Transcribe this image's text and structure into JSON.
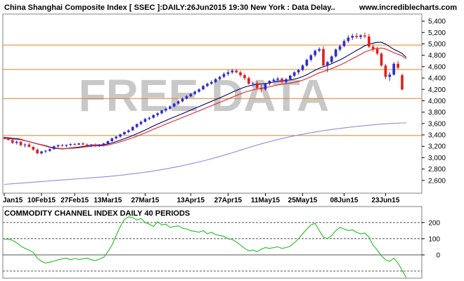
{
  "header": {
    "title": "China Shanghai Composite Index [ SSEC ]:DAILY:26Jun2015 19:30 New York : Data Delay..",
    "site": "www.incrediblecharts.com"
  },
  "watermark": "FREE DATA",
  "colors": {
    "up": "#2d2dcc",
    "down": "#e02020",
    "ma_short": "#000066",
    "ma_mid": "#dd2222",
    "ma_long": "#8c8ce0",
    "hline": "#e08020",
    "cci": "#22bb22"
  },
  "chart_data": [
    {
      "type": "candlestick",
      "title": "China Shanghai Composite Index [ SSEC ]:DAILY:26Jun2015 19:30 New York : Data Delay..",
      "xlabels": [
        "Jan15",
        "10Feb15",
        "27Feb15",
        "13Mar15",
        "27Mar15",
        "13Apr15",
        "27Apr15",
        "11May15",
        "25May15",
        "08Jun15",
        "23Jun15"
      ],
      "xlabel_index": [
        0,
        9,
        17,
        25,
        34,
        45,
        54,
        63,
        72,
        82,
        92
      ],
      "ylim": [
        2400,
        5500
      ],
      "yticks": [
        2600,
        2800,
        3000,
        3200,
        3400,
        3600,
        3800,
        4000,
        4200,
        4400,
        4600,
        4800,
        5000,
        5200,
        5400
      ],
      "ytick_labels": [
        "2,600",
        "2,800",
        "3,000",
        "3,200",
        "3,400",
        "3,600",
        "3,800",
        "4,000",
        "4,200",
        "4,400",
        "4,600",
        "4,800",
        "5,000",
        "5,200",
        "5,400"
      ],
      "hlines": [
        3390,
        4040,
        4550,
        4980
      ],
      "series_ohlc": [
        [
          3350,
          3370,
          3320,
          3340
        ],
        [
          3340,
          3350,
          3300,
          3310
        ],
        [
          3310,
          3320,
          3240,
          3260
        ],
        [
          3260,
          3300,
          3230,
          3280
        ],
        [
          3280,
          3290,
          3200,
          3220
        ],
        [
          3220,
          3250,
          3180,
          3230
        ],
        [
          3230,
          3260,
          3180,
          3190
        ],
        [
          3190,
          3200,
          3120,
          3140
        ],
        [
          3140,
          3160,
          3060,
          3075
        ],
        [
          3075,
          3120,
          3060,
          3110
        ],
        [
          3110,
          3140,
          3080,
          3120
        ],
        [
          3120,
          3160,
          3100,
          3150
        ],
        [
          3150,
          3210,
          3140,
          3200
        ],
        [
          3200,
          3230,
          3180,
          3220
        ],
        [
          3220,
          3240,
          3190,
          3210
        ],
        [
          3210,
          3230,
          3180,
          3225
        ],
        [
          3225,
          3250,
          3200,
          3240
        ],
        [
          3240,
          3260,
          3210,
          3230
        ],
        [
          3230,
          3260,
          3220,
          3250
        ],
        [
          3250,
          3270,
          3220,
          3230
        ],
        [
          3230,
          3250,
          3200,
          3220
        ],
        [
          3220,
          3240,
          3180,
          3230
        ],
        [
          3230,
          3250,
          3190,
          3210
        ],
        [
          3210,
          3240,
          3190,
          3230
        ],
        [
          3230,
          3260,
          3200,
          3250
        ],
        [
          3250,
          3300,
          3240,
          3290
        ],
        [
          3290,
          3350,
          3280,
          3340
        ],
        [
          3340,
          3380,
          3320,
          3370
        ],
        [
          3370,
          3420,
          3350,
          3410
        ],
        [
          3410,
          3460,
          3400,
          3450
        ],
        [
          3450,
          3500,
          3430,
          3480
        ],
        [
          3480,
          3550,
          3470,
          3540
        ],
        [
          3540,
          3600,
          3520,
          3590
        ],
        [
          3590,
          3650,
          3570,
          3630
        ],
        [
          3630,
          3700,
          3620,
          3680
        ],
        [
          3680,
          3720,
          3660,
          3700
        ],
        [
          3700,
          3760,
          3690,
          3750
        ],
        [
          3750,
          3800,
          3720,
          3780
        ],
        [
          3780,
          3840,
          3760,
          3830
        ],
        [
          3830,
          3880,
          3800,
          3860
        ],
        [
          3860,
          3920,
          3840,
          3900
        ],
        [
          3900,
          3960,
          3880,
          3950
        ],
        [
          3950,
          4010,
          3930,
          3990
        ],
        [
          3990,
          4060,
          3970,
          4040
        ],
        [
          4040,
          4100,
          4020,
          4080
        ],
        [
          4080,
          4140,
          4060,
          4120
        ],
        [
          4120,
          4180,
          4100,
          4160
        ],
        [
          4160,
          4220,
          4140,
          4200
        ],
        [
          4200,
          4280,
          4190,
          4260
        ],
        [
          4260,
          4320,
          4240,
          4300
        ],
        [
          4300,
          4360,
          4280,
          4330
        ],
        [
          4330,
          4400,
          4310,
          4380
        ],
        [
          4380,
          4440,
          4360,
          4420
        ],
        [
          4420,
          4500,
          4400,
          4470
        ],
        [
          4470,
          4540,
          4440,
          4500
        ],
        [
          4500,
          4560,
          4470,
          4530
        ],
        [
          4530,
          4560,
          4480,
          4500
        ],
        [
          4500,
          4530,
          4420,
          4450
        ],
        [
          4450,
          4480,
          4360,
          4400
        ],
        [
          4400,
          4430,
          4280,
          4300
        ],
        [
          4300,
          4340,
          4240,
          4310
        ],
        [
          4310,
          4350,
          4200,
          4230
        ],
        [
          4230,
          4280,
          4150,
          4200
        ],
        [
          4200,
          4320,
          4180,
          4300
        ],
        [
          4300,
          4360,
          4270,
          4350
        ],
        [
          4350,
          4400,
          4320,
          4370
        ],
        [
          4370,
          4420,
          4330,
          4390
        ],
        [
          4390,
          4410,
          4310,
          4330
        ],
        [
          4330,
          4400,
          4300,
          4380
        ],
        [
          4380,
          4460,
          4360,
          4440
        ],
        [
          4440,
          4520,
          4420,
          4500
        ],
        [
          4500,
          4560,
          4460,
          4540
        ],
        [
          4540,
          4640,
          4520,
          4620
        ],
        [
          4620,
          4740,
          4600,
          4720
        ],
        [
          4720,
          4820,
          4690,
          4800
        ],
        [
          4800,
          4900,
          4770,
          4880
        ],
        [
          4880,
          4940,
          4850,
          4910
        ],
        [
          4910,
          4960,
          4600,
          4620
        ],
        [
          4620,
          4700,
          4500,
          4680
        ],
        [
          4680,
          4800,
          4650,
          4780
        ],
        [
          4780,
          4920,
          4760,
          4900
        ],
        [
          4900,
          4990,
          4870,
          4960
        ],
        [
          4960,
          5080,
          4940,
          5050
        ],
        [
          5050,
          5150,
          5020,
          5110
        ],
        [
          5110,
          5180,
          5070,
          5140
        ],
        [
          5140,
          5190,
          5090,
          5120
        ],
        [
          5120,
          5170,
          5080,
          5150
        ],
        [
          5150,
          5200,
          5100,
          5130
        ],
        [
          5130,
          5180,
          4930,
          4950
        ],
        [
          4950,
          5000,
          4860,
          4910
        ],
        [
          4910,
          4950,
          4800,
          4830
        ],
        [
          4830,
          4850,
          4600,
          4620
        ],
        [
          4620,
          4650,
          4380,
          4420
        ],
        [
          4420,
          4500,
          4350,
          4460
        ],
        [
          4460,
          4680,
          4440,
          4650
        ],
        [
          4650,
          4700,
          4560,
          4580
        ],
        [
          4450,
          4480,
          4180,
          4200
        ]
      ],
      "moving_averages": [
        {
          "name": "",
          "values": [
            3355,
            3350,
            3340,
            3335,
            3322,
            3300,
            3282,
            3263,
            3240,
            3225,
            3205,
            3182,
            3166,
            3160,
            3155,
            3159,
            3171,
            3178,
            3186,
            3196,
            3208,
            3220,
            3223,
            3223,
            3226,
            3242,
            3259,
            3283,
            3306,
            3334,
            3360,
            3389,
            3420,
            3452,
            3486,
            3522,
            3558,
            3590,
            3621,
            3652,
            3684,
            3714,
            3744,
            3775,
            3806,
            3836,
            3868,
            3898,
            3929,
            3959,
            3990,
            4021,
            4052,
            4083,
            4117,
            4150,
            4182,
            4213,
            4240,
            4260,
            4278,
            4290,
            4296,
            4302,
            4315,
            4330,
            4343,
            4349,
            4357,
            4367,
            4380,
            4400,
            4425,
            4457,
            4497,
            4537,
            4573,
            4597,
            4622,
            4653,
            4686,
            4720,
            4758,
            4800,
            4843,
            4884,
            4925,
            4968,
            4995,
            5014,
            5028,
            5028,
            4997,
            4952,
            4904,
            4871,
            4830,
            4764
          ]
        },
        {
          "name": "",
          "values": [
            3335,
            3333,
            3326,
            3322,
            3314,
            3298,
            3283,
            3265,
            3243,
            3229,
            3211,
            3189,
            3173,
            3165,
            3158,
            3158,
            3164,
            3168,
            3175,
            3183,
            3193,
            3202,
            3206,
            3207,
            3210,
            3223,
            3238,
            3257,
            3278,
            3302,
            3325,
            3351,
            3378,
            3406,
            3436,
            3467,
            3499,
            3529,
            3559,
            3589,
            3618,
            3647,
            3676,
            3706,
            3735,
            3765,
            3795,
            3824,
            3854,
            3883,
            3913,
            3942,
            3972,
            4001,
            4032,
            4063,
            4093,
            4122,
            4149,
            4171,
            4191,
            4208,
            4220,
            4231,
            4246,
            4263,
            4278,
            4289,
            4299,
            4311,
            4324,
            4342,
            4363,
            4390,
            4423,
            4458,
            4491,
            4515,
            4540,
            4567,
            4597,
            4628,
            4662,
            4700,
            4740,
            4778,
            4816,
            4856,
            4884,
            4905,
            4921,
            4927,
            4911,
            4880,
            4845,
            4820,
            4788,
            4735
          ]
        },
        {
          "name": "",
          "values": [
            2530,
            2536,
            2541,
            2547,
            2552,
            2558,
            2563,
            2569,
            2574,
            2580,
            2585,
            2591,
            2596,
            2602,
            2607,
            2613,
            2618,
            2624,
            2629,
            2635,
            2640,
            2646,
            2651,
            2657,
            2662,
            2668,
            2675,
            2683,
            2690,
            2698,
            2707,
            2716,
            2725,
            2734,
            2745,
            2755,
            2766,
            2778,
            2790,
            2803,
            2816,
            2830,
            2844,
            2859,
            2875,
            2891,
            2908,
            2925,
            2943,
            2962,
            2981,
            3001,
            3021,
            3042,
            3064,
            3086,
            3109,
            3132,
            3155,
            3178,
            3200,
            3222,
            3242,
            3262,
            3281,
            3300,
            3318,
            3335,
            3352,
            3368,
            3383,
            3398,
            3412,
            3426,
            3439,
            3451,
            3463,
            3474,
            3485,
            3495,
            3505,
            3514,
            3523,
            3532,
            3540,
            3548,
            3556,
            3563,
            3570,
            3577,
            3583,
            3589,
            3594,
            3599,
            3603,
            3607,
            3610,
            3612
          ]
        }
      ]
    },
    {
      "type": "line",
      "title": "COMMODITY CHANNEL INDEX DAILY 40 PERIODS",
      "ylim": [
        -135,
        290
      ],
      "yticks": [
        200,
        100,
        0
      ],
      "ytick_labels": [
        "200",
        "100",
        "0"
      ],
      "hlines": [
        200,
        100,
        0,
        -100
      ],
      "series": [
        {
          "name": "",
          "values": [
            95,
            98,
            90,
            75,
            55,
            40,
            30,
            15,
            -20,
            -40,
            -50,
            -45,
            -38,
            -30,
            -25,
            -20,
            -30,
            -22,
            -28,
            -25,
            -20,
            -30,
            -35,
            -25,
            -15,
            20,
            60,
            120,
            175,
            220,
            235,
            230,
            215,
            225,
            200,
            190,
            175,
            205,
            185,
            190,
            170,
            175,
            180,
            165,
            160,
            150,
            145,
            140,
            150,
            130,
            140,
            125,
            120,
            115,
            100,
            95,
            80,
            60,
            40,
            25,
            30,
            20,
            35,
            45,
            40,
            45,
            50,
            40,
            45,
            55,
            75,
            100,
            130,
            160,
            185,
            195,
            150,
            110,
            100,
            120,
            150,
            170,
            160,
            150,
            155,
            140,
            130,
            135,
            110,
            60,
            30,
            -5,
            -30,
            -40,
            -20,
            -50,
            -95,
            -140
          ]
        }
      ]
    }
  ]
}
